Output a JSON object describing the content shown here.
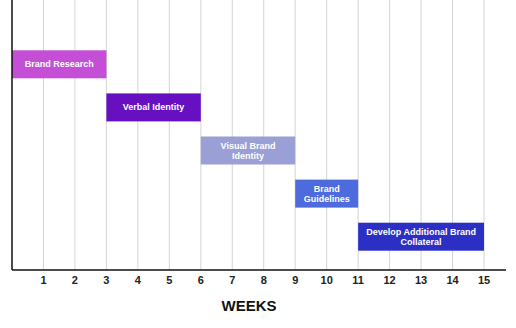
{
  "chart_data": {
    "type": "gantt",
    "orientation": "horizontal",
    "x_label": "WEEKS",
    "categories": [
      "Brand Research",
      "Verbal Identity",
      "Visual Brand Identity",
      "Brand Guidelines",
      "Develop Additional Brand Collateral"
    ],
    "start": [
      0,
      3,
      6,
      9,
      11
    ],
    "end": [
      3,
      6,
      9,
      11,
      15
    ],
    "colors": [
      "#c44fd6",
      "#6610c2",
      "#9aa0d6",
      "#4d6bdc",
      "#2b2fc4"
    ],
    "xlim": [
      0,
      15.7
    ],
    "xticks": [
      1,
      2,
      3,
      4,
      5,
      6,
      7,
      8,
      9,
      10,
      11,
      12,
      13,
      14,
      15
    ],
    "grid": true,
    "tick_labels": "x"
  }
}
